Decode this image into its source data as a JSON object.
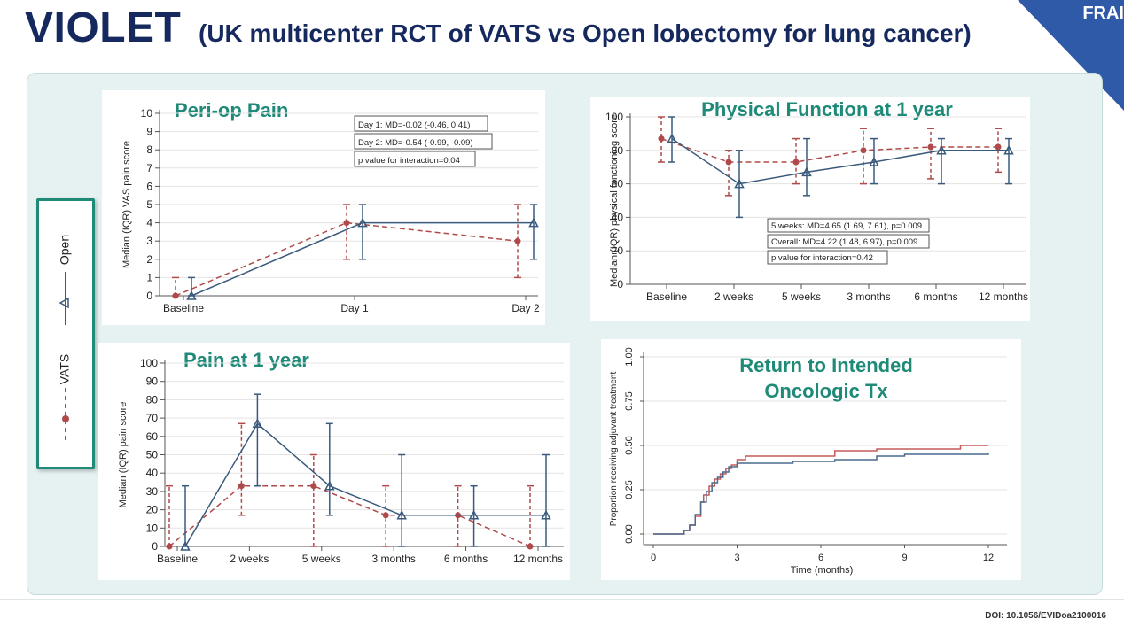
{
  "header": {
    "title": "VIOLET",
    "subtitle": "(UK multicenter RCT of VATS vs Open lobectomy for lung cancer)",
    "corner_label": "FRAI"
  },
  "footer": {
    "doi": "DOI: 10.1056/EVIDoa2100016"
  },
  "colors": {
    "vats": "#b04a4a",
    "open": "#3a5a7c",
    "heading": "#1f8a78",
    "navy": "#16295e"
  },
  "legend": {
    "items": [
      {
        "label": "VATS",
        "style": "dashed",
        "marker": "circle"
      },
      {
        "label": "Open",
        "style": "solid",
        "marker": "triangle"
      }
    ]
  },
  "chart_data": [
    {
      "type": "line",
      "title": "Peri-op Pain",
      "ylabel": "Median (IQR) VAS pain score",
      "xlabel": "",
      "categories": [
        "Baseline",
        "Day 1",
        "Day 2"
      ],
      "ylim": [
        0,
        10
      ],
      "yticks": [
        "0",
        "1",
        "2",
        "3",
        "4",
        "5",
        "6",
        "7",
        "8",
        "9",
        "10"
      ],
      "grid": true,
      "series": [
        {
          "name": "VATS",
          "values": [
            0,
            4,
            3
          ],
          "low": [
            0,
            2,
            1
          ],
          "high": [
            1,
            5,
            5
          ]
        },
        {
          "name": "Open",
          "values": [
            0,
            4,
            4
          ],
          "low": [
            0,
            2,
            2
          ],
          "high": [
            1,
            5,
            5
          ]
        }
      ],
      "annotations": [
        "Day 1: MD=-0.02 (-0.46, 0.41)",
        "Day 2: MD=-0.54 (-0.99, -0.09)",
        "p value for interaction=0.04"
      ]
    },
    {
      "type": "line",
      "title": "Physical Function at 1 year",
      "ylabel": "Median (IQR) physical functioning score",
      "xlabel": "",
      "categories": [
        "Baseline",
        "2 weeks",
        "5 weeks",
        "3 months",
        "6 months",
        "12 months"
      ],
      "ylim": [
        0,
        100
      ],
      "yticks": [
        "0",
        "20",
        "40",
        "60",
        "80",
        "100"
      ],
      "grid": true,
      "series": [
        {
          "name": "VATS",
          "values": [
            87,
            73,
            73,
            80,
            82,
            82
          ],
          "low": [
            73,
            53,
            60,
            60,
            63,
            67
          ],
          "high": [
            100,
            80,
            87,
            93,
            93,
            93
          ]
        },
        {
          "name": "Open",
          "values": [
            87,
            60,
            67,
            73,
            80,
            80
          ],
          "low": [
            73,
            40,
            53,
            60,
            60,
            60
          ],
          "high": [
            100,
            80,
            87,
            87,
            87,
            87
          ]
        }
      ],
      "annotations": [
        "5 weeks: MD=4.65 (1.69, 7.61), p=0.009",
        "Overall: MD=4.22 (1.48, 6.97), p=0.009",
        "p value for interaction=0.42"
      ]
    },
    {
      "type": "line",
      "title": "Pain at 1 year",
      "ylabel": "Median (IQR) pain score",
      "xlabel": "",
      "categories": [
        "Baseline",
        "2 weeks",
        "5 weeks",
        "3 months",
        "6 months",
        "12 months"
      ],
      "ylim": [
        0,
        100
      ],
      "yticks": [
        "0",
        "10",
        "20",
        "30",
        "40",
        "50",
        "60",
        "70",
        "80",
        "90",
        "100"
      ],
      "grid": true,
      "series": [
        {
          "name": "VATS",
          "values": [
            0,
            33,
            33,
            17,
            17,
            0
          ],
          "low": [
            0,
            17,
            0,
            0,
            0,
            0
          ],
          "high": [
            33,
            67,
            50,
            33,
            33,
            33
          ]
        },
        {
          "name": "Open",
          "values": [
            0,
            67,
            33,
            17,
            17,
            17
          ],
          "low": [
            0,
            33,
            17,
            0,
            0,
            0
          ],
          "high": [
            33,
            83,
            67,
            50,
            33,
            50
          ]
        }
      ],
      "annotations": []
    },
    {
      "type": "line",
      "title": "Return to Intended Oncologic Tx",
      "ylabel": "Proportion receiving adjuvant treatment",
      "xlabel": "Time (months)",
      "xlim": [
        0,
        12
      ],
      "xticks": [
        "0",
        "3",
        "6",
        "9",
        "12"
      ],
      "ylim": [
        0,
        1
      ],
      "yticks": [
        "0.00",
        "0.25",
        "0.50",
        "0.75",
        "1.00"
      ],
      "grid": true,
      "series": [
        {
          "name": "VATS",
          "x": [
            0,
            1.1,
            1.3,
            1.5,
            1.7,
            1.8,
            2.0,
            2.2,
            2.4,
            2.6,
            2.8,
            3.0,
            3.3,
            4.5,
            6.5,
            8.0,
            11.0,
            12.0
          ],
          "values": [
            0,
            0.02,
            0.05,
            0.1,
            0.18,
            0.22,
            0.27,
            0.31,
            0.34,
            0.37,
            0.39,
            0.42,
            0.44,
            0.44,
            0.47,
            0.48,
            0.5,
            0.5
          ]
        },
        {
          "name": "Open",
          "x": [
            0,
            1.1,
            1.3,
            1.5,
            1.7,
            1.9,
            2.1,
            2.3,
            2.5,
            2.7,
            3.0,
            3.5,
            5.0,
            6.5,
            8.0,
            9.0,
            12.0
          ],
          "values": [
            0,
            0.02,
            0.05,
            0.11,
            0.18,
            0.24,
            0.29,
            0.32,
            0.35,
            0.38,
            0.4,
            0.4,
            0.41,
            0.42,
            0.44,
            0.45,
            0.46
          ]
        }
      ],
      "annotations": []
    }
  ]
}
